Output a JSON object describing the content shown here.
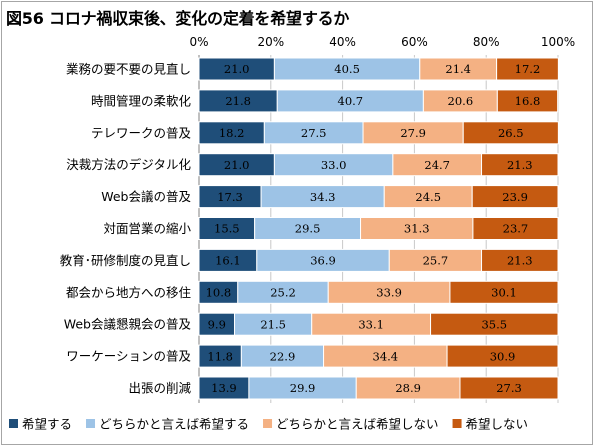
{
  "chart_data": {
    "type": "bar",
    "orientation": "horizontal",
    "stacked": true,
    "title": "図56 コロナ禍収束後、変化の定着を希望するか",
    "xlim": [
      0,
      100
    ],
    "x_ticks": [
      "0%",
      "20%",
      "40%",
      "60%",
      "80%",
      "100%"
    ],
    "x_tick_position": "top",
    "grid": true,
    "legend_position": "bottom",
    "categories": [
      "業務の要不要の見直し",
      "時間管理の柔軟化",
      "テレワークの普及",
      "決裁方法のデジタル化",
      "Web会議の普及",
      "対面営業の縮小",
      "教育･研修制度の見直し",
      "都会から地方への移住",
      "Web会議懇親会の普及",
      "ワーケーションの普及",
      "出張の削減"
    ],
    "series": [
      {
        "name": "希望する",
        "color": "#1f4e79",
        "values": [
          21.0,
          21.8,
          18.2,
          21.0,
          17.3,
          15.5,
          16.1,
          10.8,
          9.9,
          11.8,
          13.9
        ]
      },
      {
        "name": "どちらかと言えば希望する",
        "color": "#9dc3e6",
        "values": [
          40.5,
          40.7,
          27.5,
          33.0,
          34.3,
          29.5,
          36.9,
          25.2,
          21.5,
          22.9,
          29.9
        ]
      },
      {
        "name": "どちらかと言えば希望しない",
        "color": "#f4b183",
        "values": [
          21.4,
          20.6,
          27.9,
          24.7,
          24.5,
          31.3,
          25.7,
          33.9,
          33.1,
          34.4,
          28.9
        ]
      },
      {
        "name": "希望しない",
        "color": "#c55a11",
        "values": [
          17.2,
          16.8,
          26.5,
          21.3,
          23.9,
          23.7,
          21.3,
          30.1,
          35.5,
          30.9,
          27.3
        ]
      }
    ],
    "data_label_colors": [
      "#ffffff",
      "#000000",
      "#000000",
      "#000000"
    ]
  }
}
